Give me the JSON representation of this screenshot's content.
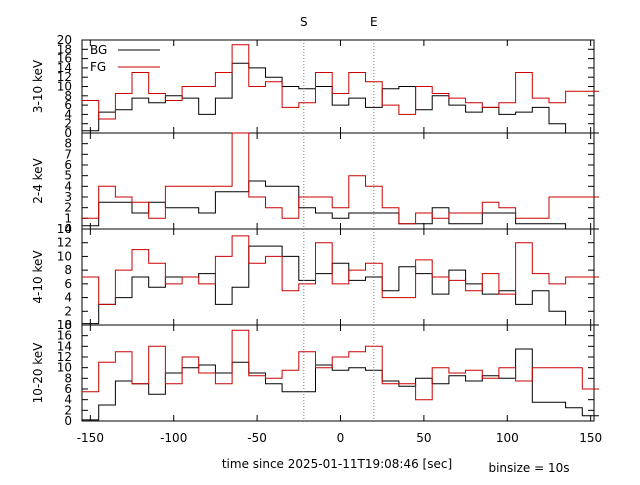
{
  "chart_data": {
    "type": "line",
    "step": true,
    "xlabel": "time since 2025-01-11T19:08:46 [sec]",
    "binsize_label": "binsize = 10s",
    "xlim": [
      -155,
      152
    ],
    "xticks": [
      -150,
      -100,
      -50,
      0,
      50,
      100,
      150
    ],
    "markers": [
      {
        "label": "S",
        "x": -22
      },
      {
        "label": "E",
        "x": 20
      }
    ],
    "legend": {
      "position": "top-left",
      "entries": [
        {
          "name": "BG",
          "color": "#000000"
        },
        {
          "name": "FG",
          "color": "#cc0000"
        }
      ]
    },
    "bin_edges": [
      -155,
      -145,
      -135,
      -125,
      -115,
      -105,
      -95,
      -85,
      -75,
      -65,
      -55,
      -45,
      -35,
      -25,
      -15,
      -5,
      5,
      15,
      25,
      35,
      45,
      55,
      65,
      75,
      85,
      95,
      105,
      115,
      125,
      135,
      145,
      155
    ],
    "panels": [
      {
        "ylabel": "3-10 keV",
        "ylim": [
          0,
          20
        ],
        "yticks": [
          0,
          2,
          4,
          6,
          8,
          10,
          12,
          14,
          16,
          18,
          20
        ],
        "show_legend": true,
        "series": [
          {
            "name": "BG",
            "color": "#000000",
            "values": [
              0.5,
              4.5,
              5,
              7.5,
              6.5,
              8,
              7.5,
              4,
              7.5,
              15,
              14,
              12,
              10,
              9.5,
              10,
              6,
              7.5,
              5.5,
              9.5,
              10,
              5,
              8,
              6,
              4.5,
              5.5,
              4,
              4.5,
              5.5,
              2,
              0,
              0
            ]
          },
          {
            "name": "FG",
            "color": "#cc0000",
            "values": [
              7,
              3,
              8.5,
              13,
              8.5,
              7,
              10,
              10,
              13,
              19,
              10,
              11,
              5.5,
              6.5,
              13,
              8.5,
              13,
              11,
              6,
              4,
              10,
              8.5,
              7.5,
              6.5,
              5.5,
              6.5,
              13,
              7.5,
              6.5,
              9,
              9
            ]
          }
        ]
      },
      {
        "ylabel": "2-4 keV",
        "ylim": [
          0,
          9
        ],
        "yticks": [
          0,
          1,
          2,
          3,
          4,
          5,
          6,
          7,
          8
        ],
        "show_legend": false,
        "series": [
          {
            "name": "BG",
            "color": "#000000",
            "values": [
              0.3,
              2.5,
              2.5,
              1.5,
              2.5,
              2,
              2,
              1.5,
              3.5,
              3.5,
              4.5,
              4,
              4,
              2,
              1.5,
              1,
              1.5,
              1.5,
              1.5,
              0.5,
              0.5,
              2,
              0.5,
              0.5,
              1.5,
              1.5,
              0.5,
              0.5,
              0.5,
              0,
              0
            ]
          },
          {
            "name": "FG",
            "color": "#cc0000",
            "values": [
              1,
              4,
              3,
              2.5,
              1,
              4,
              4,
              4,
              4,
              9,
              3,
              2,
              1,
              3,
              3,
              2,
              5,
              4,
              2,
              0.5,
              1.5,
              1,
              1.5,
              1.5,
              2.5,
              2,
              1,
              1,
              3,
              3,
              3
            ]
          }
        ]
      },
      {
        "ylabel": "4-10 keV",
        "ylim": [
          0,
          14
        ],
        "yticks": [
          0,
          2,
          4,
          6,
          8,
          10,
          12,
          14
        ],
        "show_legend": false,
        "series": [
          {
            "name": "BG",
            "color": "#000000",
            "values": [
              0.2,
              3,
              4,
              7,
              5.5,
              7,
              7,
              7.5,
              3,
              5.5,
              11.5,
              11.5,
              10,
              6.5,
              7.5,
              9,
              6.5,
              7,
              5,
              8.5,
              7.5,
              4.5,
              8,
              6,
              4.5,
              5,
              3,
              5,
              2,
              0,
              0
            ]
          },
          {
            "name": "FG",
            "color": "#cc0000",
            "values": [
              7,
              3,
              8,
              11,
              9,
              6,
              7,
              6,
              10,
              13,
              9,
              10,
              5,
              6,
              12,
              6,
              8,
              9,
              4,
              4,
              9.5,
              7,
              6.5,
              5,
              7.5,
              4.5,
              12,
              7.5,
              6,
              7,
              7
            ]
          }
        ]
      },
      {
        "ylabel": "10-20 keV",
        "ylim": [
          0,
          18
        ],
        "yticks": [
          0,
          2,
          4,
          6,
          8,
          10,
          12,
          14,
          16,
          18
        ],
        "show_legend": false,
        "series": [
          {
            "name": "BG",
            "color": "#000000",
            "values": [
              0.2,
              3,
              7.5,
              7,
              5,
              9,
              10,
              10.5,
              9,
              11,
              9,
              7,
              5.5,
              5.5,
              10.5,
              9.5,
              10,
              9.5,
              7.5,
              6.5,
              8,
              7,
              8.5,
              7.5,
              8.5,
              8,
              13.5,
              3.5,
              3.5,
              2.5,
              1
            ]
          },
          {
            "name": "FG",
            "color": "#cc0000",
            "values": [
              5.5,
              11,
              13,
              7,
              14,
              7,
              12,
              9,
              7,
              17,
              8.5,
              8,
              9.5,
              13,
              10,
              12,
              13,
              14,
              7,
              7,
              4,
              10,
              9,
              9.5,
              8,
              10,
              7.5,
              10,
              10,
              10,
              6
            ]
          }
        ]
      }
    ]
  }
}
